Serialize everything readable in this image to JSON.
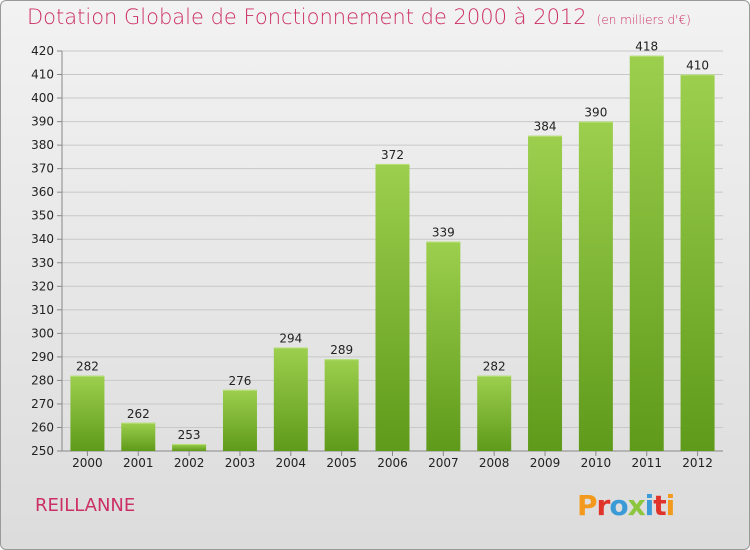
{
  "header": {
    "title": "Dotation Globale de Fonctionnement de 2000 à 2012",
    "unit": "(en milliers d'€)"
  },
  "footer": {
    "commune": "REILLANNE",
    "logo": "Proxiti",
    "logo_colors": [
      "#f39a1e",
      "#e0342b",
      "#3b9bd6",
      "#8cc63f",
      "#3b9bd6",
      "#e0342b",
      "#f39a1e"
    ]
  },
  "chart_data": {
    "type": "bar",
    "categories": [
      "2000",
      "2001",
      "2002",
      "2003",
      "2004",
      "2005",
      "2006",
      "2007",
      "2008",
      "2009",
      "2010",
      "2011",
      "2012"
    ],
    "values": [
      282,
      262,
      253,
      276,
      294,
      289,
      372,
      339,
      282,
      384,
      390,
      418,
      410
    ],
    "ylim": [
      250,
      420
    ],
    "ytick_step": 10,
    "grid": true,
    "bar_color_top": "#9ccf4d",
    "bar_color_bottom": "#5f9a1a",
    "title": "Dotation Globale de Fonctionnement de 2000 à 2012",
    "xlabel": "",
    "ylabel": ""
  }
}
